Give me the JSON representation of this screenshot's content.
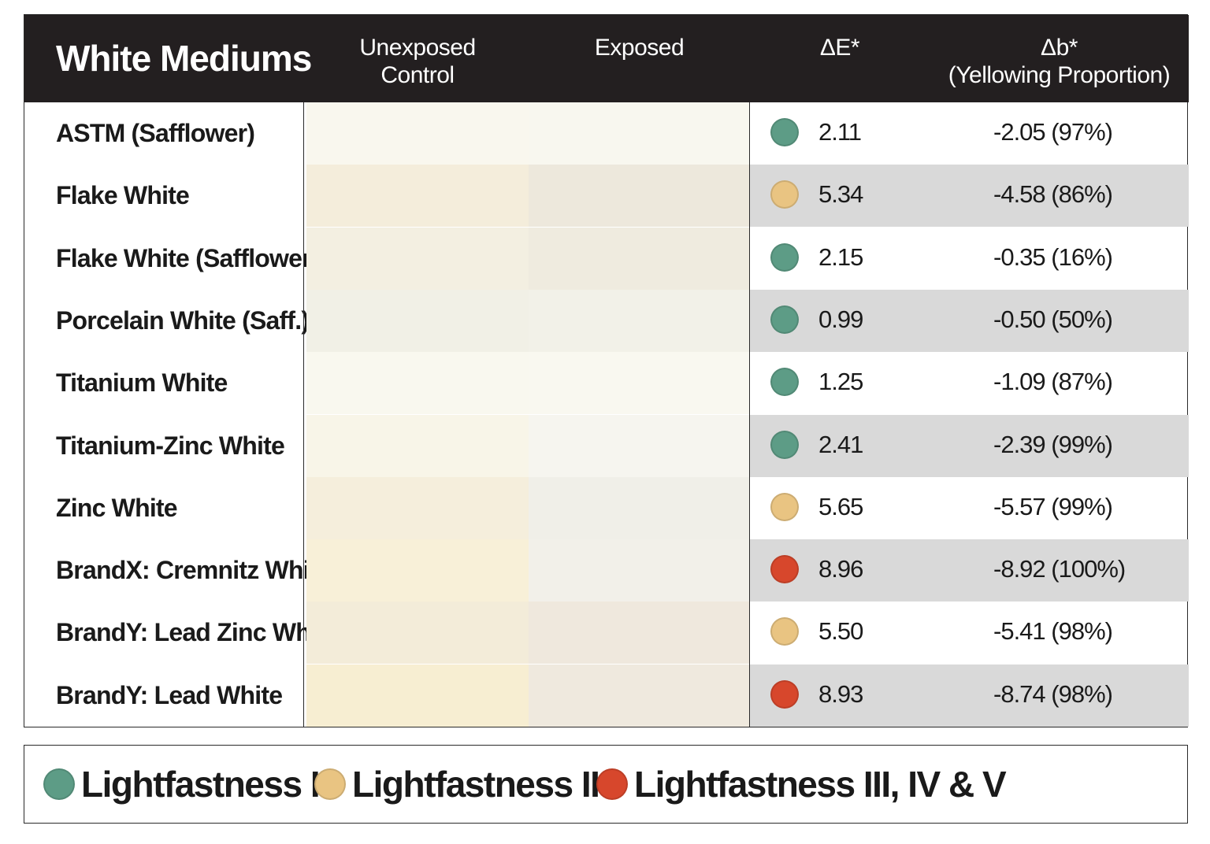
{
  "header": {
    "title": "White Mediums",
    "col_unexposed_1": "Unexposed",
    "col_unexposed_2": "Control",
    "col_exposed": "Exposed",
    "col_de": "ΔE*",
    "col_db_1": "Δb*",
    "col_db_2": "(Yellowing Proportion)"
  },
  "colors": {
    "lightfastness_1": "#5d9c86",
    "lightfastness_2": "#e9c482",
    "lightfastness_3": "#d7472c",
    "header_bg": "#231f20",
    "alt_row_bg": "#d9d9d9"
  },
  "legend": [
    {
      "label": "Lightfastness I",
      "color": "#5d9c86"
    },
    {
      "label": "Lightfastness II",
      "color": "#e9c482"
    },
    {
      "label": "Lightfastness III, IV & V",
      "color": "#d7472c"
    }
  ],
  "chart_data": {
    "type": "table",
    "title": "White Mediums",
    "columns": [
      "White Mediums",
      "Unexposed Control",
      "Exposed",
      "ΔE*",
      "Δb* (Yellowing Proportion)"
    ],
    "rows": [
      {
        "name": "ASTM (Safflower)",
        "unexposed": "#f9f7ee",
        "exposed": "#f8f7ef",
        "delta_e": "2.11",
        "delta_b": "-2.05 (97%)",
        "lightfastness": 1
      },
      {
        "name": "Flake White",
        "unexposed": "#f4eddb",
        "exposed": "#ede8dc",
        "delta_e": "5.34",
        "delta_b": "-4.58 (86%)",
        "lightfastness": 2
      },
      {
        "name": "Flake White (Safflower)",
        "unexposed": "#f3efe1",
        "exposed": "#efebdf",
        "delta_e": "2.15",
        "delta_b": "-0.35 (16%)",
        "lightfastness": 1
      },
      {
        "name": "Porcelain White (Saff.)",
        "unexposed": "#f1f0e6",
        "exposed": "#f2f1e8",
        "delta_e": "0.99",
        "delta_b": "-0.50 (50%)",
        "lightfastness": 1
      },
      {
        "name": "Titanium White",
        "unexposed": "#f9f8ef",
        "exposed": "#f9f8f0",
        "delta_e": "1.25",
        "delta_b": "-1.09 (87%)",
        "lightfastness": 1
      },
      {
        "name": "Titanium-Zinc White",
        "unexposed": "#f8f5e8",
        "exposed": "#f6f5ef",
        "delta_e": "2.41",
        "delta_b": "-2.39 (99%)",
        "lightfastness": 1
      },
      {
        "name": "Zinc White",
        "unexposed": "#f5eedc",
        "exposed": "#f0efe8",
        "delta_e": "5.65",
        "delta_b": "-5.57 (99%)",
        "lightfastness": 2
      },
      {
        "name": "BrandX: Cremnitz White",
        "unexposed": "#f8f0d8",
        "exposed": "#f2f0e9",
        "delta_e": "8.96",
        "delta_b": "-8.92 (100%)",
        "lightfastness": 3
      },
      {
        "name": "BrandY: Lead Zinc White",
        "unexposed": "#f3ecd9",
        "exposed": "#efe8dd",
        "delta_e": "5.50",
        "delta_b": "-5.41 (98%)",
        "lightfastness": 2
      },
      {
        "name": "BrandY: Lead White",
        "unexposed": "#f7eed2",
        "exposed": "#efe9de",
        "delta_e": "8.93",
        "delta_b": "-8.74 (98%)",
        "lightfastness": 3
      }
    ]
  }
}
